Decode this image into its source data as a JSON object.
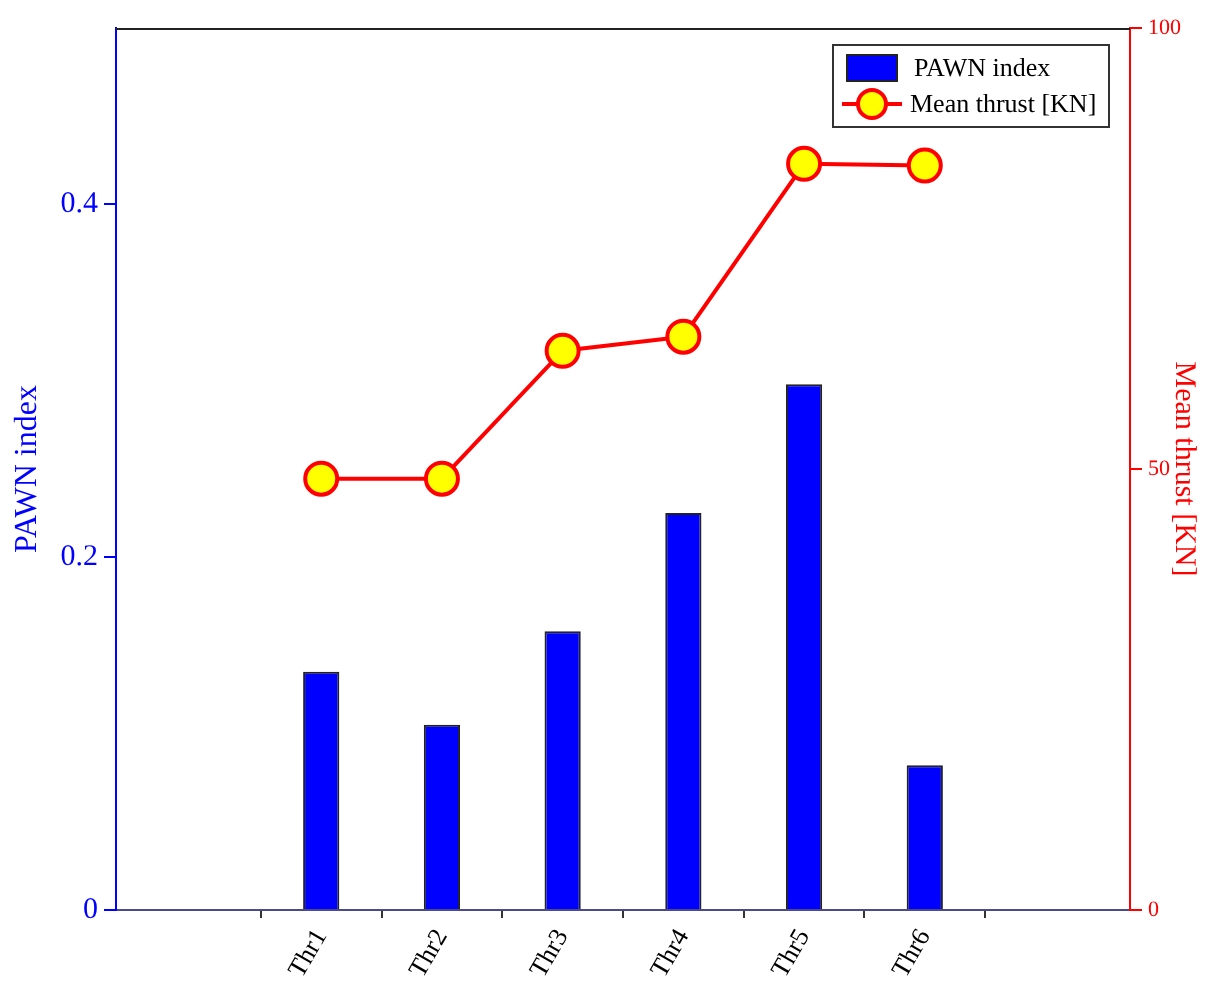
{
  "chart_data": {
    "type": "bar",
    "categories": [
      "Thr1",
      "Thr2",
      "Thr3",
      "Thr4",
      "Thr5",
      "Thr6"
    ],
    "series": [
      {
        "name": "PAWN index",
        "color": "#0000ff",
        "values": [
          0.135,
          0.105,
          0.158,
          0.225,
          0.298,
          0.082
        ]
      },
      {
        "name": "Mean thrust [KN]",
        "type": "line",
        "axis": "y2",
        "color": "#ff0000",
        "marker": "circle",
        "values": [
          48.9,
          48.9,
          63.4,
          65.0,
          84.6,
          84.4
        ]
      }
    ],
    "ylabel": "PAWN index",
    "y2label": "Mean thrust [KN]",
    "ylim": [
      0,
      0.5
    ],
    "yticks": [
      0,
      0.2,
      0.4
    ],
    "y2lim": [
      0,
      100
    ],
    "y2ticks": [
      0,
      50,
      100
    ],
    "legend": "top right"
  }
}
